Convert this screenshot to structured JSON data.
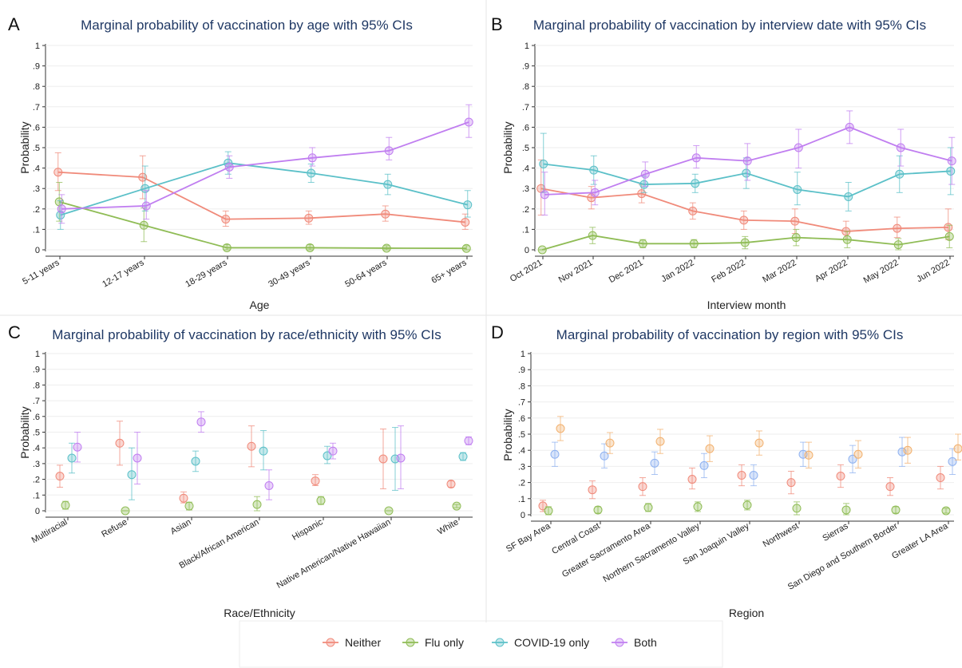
{
  "figure": {
    "panel_letters": [
      "A",
      "B",
      "C",
      "D"
    ]
  },
  "legend": {
    "position": "bottom",
    "items": [
      {
        "label": "Neither",
        "color": "#f08a7a"
      },
      {
        "label": "Flu only",
        "color": "#8fbc55"
      },
      {
        "label": "COVID-19 only",
        "color": "#5bc0c8"
      },
      {
        "label": "Both",
        "color": "#c07ef0"
      }
    ]
  },
  "chart_data": [
    {
      "type": "line",
      "title": "Marginal probability of vaccination by age with 95% CIs",
      "xlabel": "Age",
      "ylabel": "Probability",
      "ylim": [
        0,
        1
      ],
      "yticks": [
        "0",
        ".1",
        ".2",
        ".3",
        ".4",
        ".5",
        ".6",
        ".7",
        ".8",
        ".9",
        "1"
      ],
      "categories": [
        "5-11 years",
        "12-17 years",
        "18-29 years",
        "30-49 years",
        "50-64 years",
        "65+ years"
      ],
      "series": [
        {
          "name": "Neither",
          "color": "#f08a7a",
          "values": [
            0.38,
            0.355,
            0.15,
            0.155,
            0.175,
            0.135
          ],
          "lower": [
            0.29,
            0.25,
            0.115,
            0.125,
            0.14,
            0.1
          ],
          "upper": [
            0.475,
            0.46,
            0.19,
            0.19,
            0.215,
            0.175
          ]
        },
        {
          "name": "Flu only",
          "color": "#8fbc55",
          "values": [
            0.235,
            0.12,
            0.01,
            0.01,
            0.008,
            0.007
          ],
          "lower": [
            0.14,
            0.04,
            0.0,
            0.0,
            0.0,
            0.0
          ],
          "upper": [
            0.33,
            0.205,
            0.025,
            0.025,
            0.02,
            0.02
          ]
        },
        {
          "name": "COVID-19 only",
          "color": "#5bc0c8",
          "values": [
            0.17,
            0.3,
            0.425,
            0.375,
            0.32,
            0.22
          ],
          "lower": [
            0.1,
            0.19,
            0.37,
            0.33,
            0.27,
            0.16
          ],
          "upper": [
            0.24,
            0.41,
            0.48,
            0.42,
            0.37,
            0.29
          ]
        },
        {
          "name": "Both",
          "color": "#c07ef0",
          "values": [
            0.2,
            0.215,
            0.405,
            0.45,
            0.485,
            0.625
          ],
          "lower": [
            0.13,
            0.15,
            0.35,
            0.41,
            0.44,
            0.55
          ],
          "upper": [
            0.27,
            0.29,
            0.46,
            0.5,
            0.55,
            0.71
          ]
        }
      ]
    },
    {
      "type": "line",
      "title": "Marginal probability of vaccination by interview date with 95% CIs",
      "xlabel": "Interview month",
      "ylabel": "Probability",
      "ylim": [
        0,
        1
      ],
      "yticks": [
        "0",
        ".1",
        ".2",
        ".3",
        ".4",
        ".5",
        ".6",
        ".7",
        ".8",
        ".9",
        "1"
      ],
      "categories": [
        "Oct 2021",
        "Nov 2021",
        "Dec 2021",
        "Jan 2022",
        "Feb 2022",
        "Mar 2022",
        "Apr 2022",
        "May 2022",
        "Jun 2022"
      ],
      "series": [
        {
          "name": "Neither",
          "color": "#f08a7a",
          "values": [
            0.3,
            0.255,
            0.275,
            0.19,
            0.145,
            0.14,
            0.09,
            0.105,
            0.11
          ],
          "lower": [
            0.17,
            0.2,
            0.23,
            0.15,
            0.1,
            0.08,
            0.05,
            0.06,
            0.05
          ],
          "upper": [
            0.44,
            0.31,
            0.32,
            0.23,
            0.19,
            0.2,
            0.14,
            0.16,
            0.2
          ]
        },
        {
          "name": "Flu only",
          "color": "#8fbc55",
          "values": [
            0.0,
            0.07,
            0.03,
            0.03,
            0.035,
            0.06,
            0.05,
            0.025,
            0.065
          ],
          "lower": [
            0.0,
            0.03,
            0.01,
            0.01,
            0.005,
            0.02,
            0.01,
            0.0,
            0.01
          ],
          "upper": [
            0.0,
            0.11,
            0.05,
            0.05,
            0.065,
            0.1,
            0.09,
            0.055,
            0.12
          ]
        },
        {
          "name": "COVID-19 only",
          "color": "#5bc0c8",
          "values": [
            0.42,
            0.39,
            0.32,
            0.325,
            0.375,
            0.295,
            0.26,
            0.37,
            0.385
          ],
          "lower": [
            0.28,
            0.32,
            0.28,
            0.28,
            0.3,
            0.22,
            0.19,
            0.28,
            0.27
          ],
          "upper": [
            0.57,
            0.46,
            0.36,
            0.37,
            0.45,
            0.38,
            0.33,
            0.46,
            0.5
          ]
        },
        {
          "name": "Both",
          "color": "#c07ef0",
          "values": [
            0.27,
            0.28,
            0.37,
            0.45,
            0.435,
            0.5,
            0.6,
            0.5,
            0.435
          ],
          "lower": [
            0.17,
            0.22,
            0.31,
            0.4,
            0.34,
            0.4,
            0.52,
            0.41,
            0.32
          ],
          "upper": [
            0.38,
            0.34,
            0.43,
            0.51,
            0.52,
            0.59,
            0.68,
            0.59,
            0.55
          ]
        }
      ]
    },
    {
      "type": "scatter",
      "title": "Marginal probability of vaccination by race/ethnicity with 95% CIs",
      "xlabel": "Race/Ethnicity",
      "ylabel": "Probability",
      "ylim": [
        0,
        1
      ],
      "yticks": [
        "0",
        ".1",
        ".2",
        ".3",
        ".4",
        ".5",
        ".6",
        ".7",
        ".8",
        ".9",
        "1"
      ],
      "categories": [
        "Multiracial",
        "Refuse",
        "Asian",
        "Black/African American",
        "Hispanic",
        "Native American/Native Hawaiian",
        "White"
      ],
      "series": [
        {
          "name": "Neither",
          "color": "#f08a7a",
          "values": [
            0.22,
            0.43,
            0.08,
            0.41,
            0.19,
            0.33,
            0.17
          ],
          "lower": [
            0.15,
            0.29,
            0.05,
            0.28,
            0.16,
            0.14,
            0.15
          ],
          "upper": [
            0.29,
            0.57,
            0.12,
            0.54,
            0.23,
            0.52,
            0.19
          ]
        },
        {
          "name": "Flu only",
          "color": "#8fbc55",
          "values": [
            0.035,
            0.0,
            0.03,
            0.04,
            0.065,
            0.0,
            0.03
          ],
          "lower": [
            0.01,
            0.0,
            0.005,
            0.0,
            0.04,
            0.0,
            0.02
          ],
          "upper": [
            0.06,
            0.0,
            0.055,
            0.09,
            0.09,
            0.0,
            0.04
          ]
        },
        {
          "name": "COVID-19 only",
          "color": "#5bc0c8",
          "values": [
            0.335,
            0.23,
            0.315,
            0.38,
            0.35,
            0.33,
            0.345
          ],
          "lower": [
            0.24,
            0.07,
            0.25,
            0.26,
            0.3,
            0.13,
            0.32
          ],
          "upper": [
            0.43,
            0.4,
            0.38,
            0.51,
            0.41,
            0.53,
            0.37
          ]
        },
        {
          "name": "Both",
          "color": "#c07ef0",
          "values": [
            0.405,
            0.335,
            0.565,
            0.16,
            0.38,
            0.335,
            0.445
          ],
          "lower": [
            0.31,
            0.17,
            0.5,
            0.07,
            0.33,
            0.14,
            0.42
          ],
          "upper": [
            0.5,
            0.5,
            0.63,
            0.26,
            0.43,
            0.54,
            0.47
          ]
        }
      ]
    },
    {
      "type": "scatter",
      "title": "Marginal probability of vaccination by region with 95% CIs",
      "xlabel": "Region",
      "ylabel": "Probability",
      "ylim": [
        0,
        1
      ],
      "yticks": [
        "0",
        ".1",
        ".2",
        ".3",
        ".4",
        ".5",
        ".6",
        ".7",
        ".8",
        ".9",
        "1"
      ],
      "categories": [
        "SF Bay Area",
        "Central Coast",
        "Greater Sacramento Area",
        "Northern Sacramento Valley",
        "San Joaquin Valley",
        "Northwest",
        "Sierras",
        "San Diego and Southern Border",
        "Greater LA Area"
      ],
      "series": [
        {
          "name": "Neither",
          "color": "#f08a7a",
          "values": [
            0.055,
            0.155,
            0.175,
            0.22,
            0.245,
            0.2,
            0.24,
            0.175,
            0.23
          ],
          "lower": [
            0.02,
            0.1,
            0.12,
            0.16,
            0.18,
            0.13,
            0.17,
            0.12,
            0.16
          ],
          "upper": [
            0.09,
            0.21,
            0.23,
            0.29,
            0.31,
            0.27,
            0.31,
            0.23,
            0.3
          ]
        },
        {
          "name": "Flu only",
          "color": "#8fbc55",
          "values": [
            0.025,
            0.03,
            0.045,
            0.05,
            0.06,
            0.04,
            0.03,
            0.03,
            0.025
          ],
          "lower": [
            0.0,
            0.01,
            0.02,
            0.02,
            0.03,
            0.0,
            0.0,
            0.01,
            0.01
          ],
          "upper": [
            0.05,
            0.05,
            0.07,
            0.08,
            0.09,
            0.08,
            0.07,
            0.05,
            0.04
          ]
        },
        {
          "name": "COVID-19 only",
          "color": "#8fb2f0",
          "values": [
            0.375,
            0.365,
            0.32,
            0.305,
            0.245,
            0.375,
            0.345,
            0.39,
            0.33
          ],
          "lower": [
            0.3,
            0.29,
            0.25,
            0.23,
            0.18,
            0.3,
            0.26,
            0.3,
            0.25
          ],
          "upper": [
            0.45,
            0.44,
            0.39,
            0.38,
            0.31,
            0.45,
            0.43,
            0.48,
            0.41
          ]
        },
        {
          "name": "Both",
          "color": "#f2b16f",
          "values": [
            0.535,
            0.445,
            0.455,
            0.41,
            0.445,
            0.37,
            0.375,
            0.4,
            0.41
          ],
          "lower": [
            0.46,
            0.38,
            0.38,
            0.33,
            0.37,
            0.29,
            0.29,
            0.32,
            0.34
          ],
          "upper": [
            0.61,
            0.51,
            0.53,
            0.49,
            0.52,
            0.45,
            0.46,
            0.48,
            0.5
          ]
        }
      ]
    }
  ]
}
